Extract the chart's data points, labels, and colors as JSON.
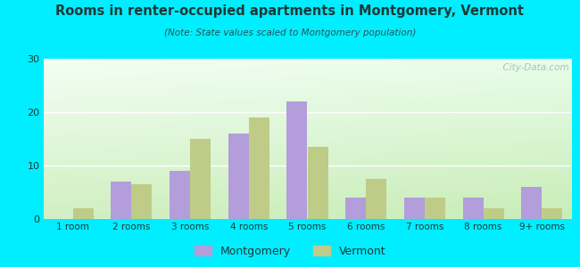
{
  "title": "Rooms in renter-occupied apartments in Montgomery, Vermont",
  "subtitle": "(Note: State values scaled to Montgomery population)",
  "categories": [
    "1 room",
    "2 rooms",
    "3 rooms",
    "4 rooms",
    "5 rooms",
    "6 rooms",
    "7 rooms",
    "8 rooms",
    "9+ rooms"
  ],
  "montgomery": [
    0,
    7,
    9,
    16,
    22,
    4,
    4,
    4,
    6
  ],
  "vermont": [
    2,
    6.5,
    15,
    19,
    13.5,
    7.5,
    4,
    2,
    2
  ],
  "montgomery_color": "#b39ddb",
  "vermont_color": "#bfcc88",
  "background_outer": "#00eeff",
  "ylim": [
    0,
    30
  ],
  "yticks": [
    0,
    10,
    20,
    30
  ],
  "bar_width": 0.35,
  "legend_labels": [
    "Montgomery",
    "Vermont"
  ],
  "watermark": "  City-Data.com",
  "title_color": "#1a3a3a",
  "subtitle_color": "#2a5555"
}
